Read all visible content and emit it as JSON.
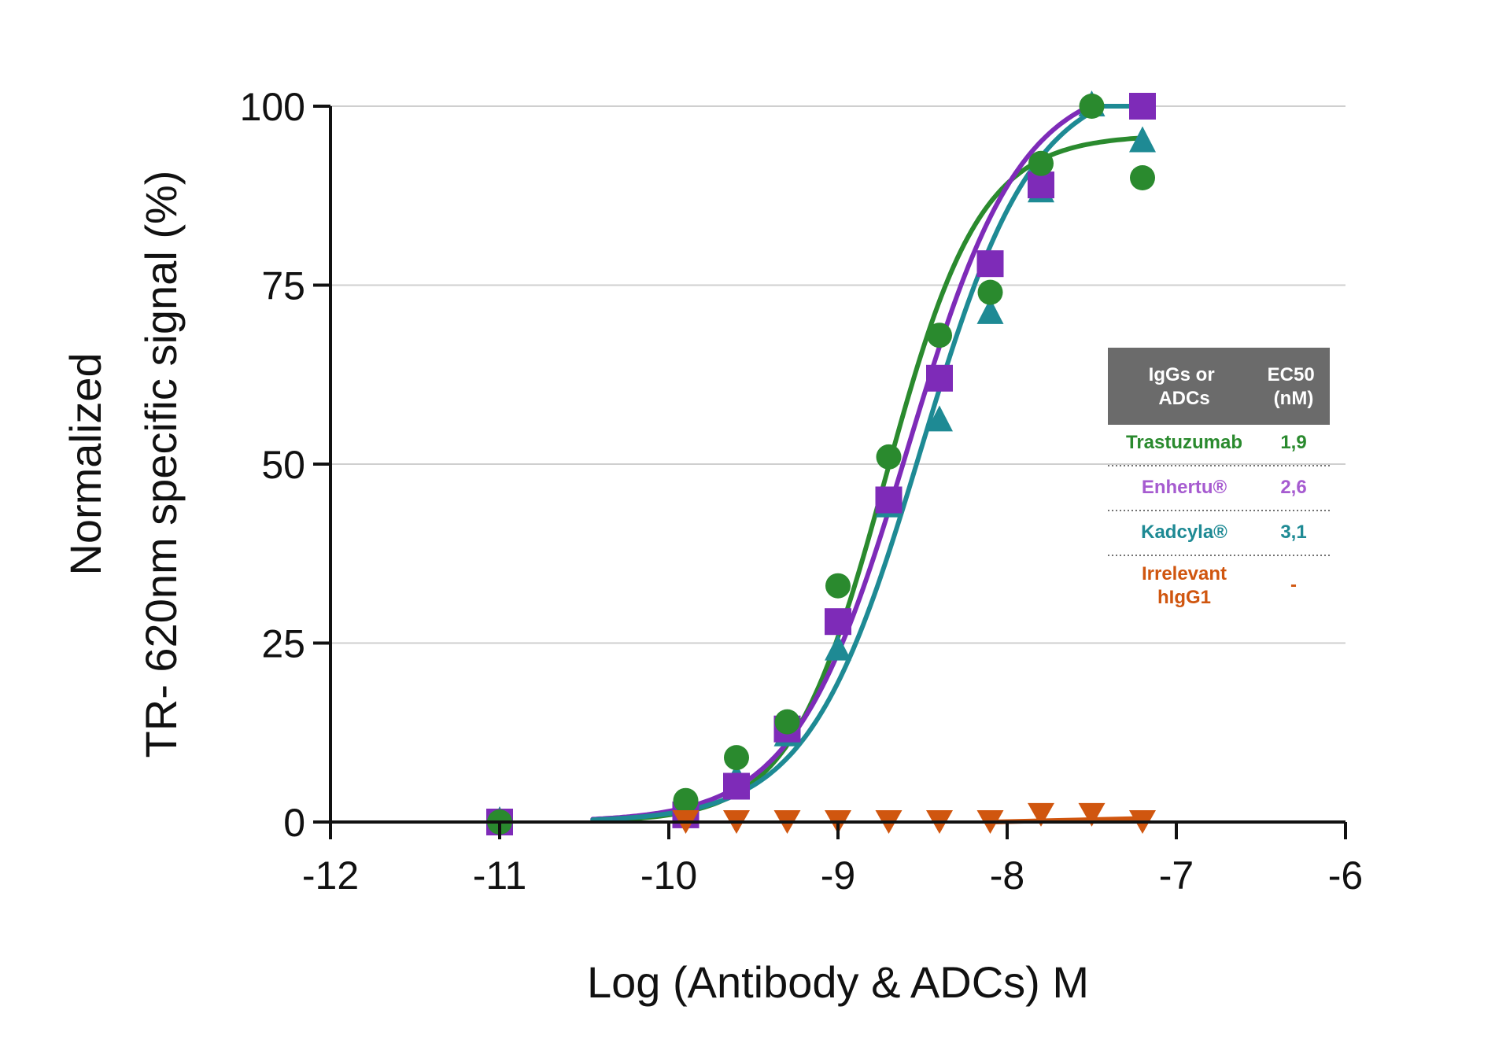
{
  "chart_data": {
    "type": "scatter",
    "xlabel": "Log (Antibody & ADCs) M",
    "ylabel_lines": [
      "Normalized",
      "TR- 620nm specific signal (%)"
    ],
    "xlim": [
      -12,
      -6
    ],
    "ylim": [
      0,
      100
    ],
    "x_ticks": [
      -12,
      -11,
      -10,
      -9,
      -8,
      -7,
      -6
    ],
    "x_tick_labels": [
      "-12",
      "-11",
      "-10",
      "-9",
      "-8",
      "-7",
      "-6"
    ],
    "y_ticks": [
      0,
      25,
      50,
      75,
      100
    ],
    "y_tick_labels": [
      "0",
      "25",
      "50",
      "75",
      "100"
    ],
    "grid": "horizontal",
    "zero_line": "dotted",
    "series": [
      {
        "name": "Trastuzumab",
        "color": "#2a8a2e",
        "marker": "circle",
        "x": [
          -11,
          -9.9,
          -9.6,
          -9.3,
          -9.0,
          -8.7,
          -8.4,
          -8.1,
          -7.8,
          -7.5,
          -7.2
        ],
        "y": [
          0,
          3,
          9,
          14,
          33,
          51,
          68,
          74,
          92,
          100,
          90
        ],
        "fit": {
          "bottom": 0,
          "top": 96,
          "logEC50": -8.72,
          "hill": 1.55
        }
      },
      {
        "name": "Enhertu®",
        "color": "#7e2bb8",
        "marker": "square",
        "x": [
          -11,
          -9.9,
          -9.6,
          -9.3,
          -9.0,
          -8.7,
          -8.4,
          -8.1,
          -7.8,
          -7.2
        ],
        "y": [
          0,
          1,
          5,
          13,
          28,
          45,
          62,
          78,
          89,
          100
        ],
        "fit": {
          "bottom": 0,
          "top": 104,
          "logEC50": -8.59,
          "hill": 1.3
        }
      },
      {
        "name": "Kadcyla®",
        "color": "#1e8a94",
        "marker": "triangle-up",
        "x": [
          -11,
          -9.9,
          -9.6,
          -9.3,
          -9.0,
          -8.7,
          -8.4,
          -8.1,
          -7.8,
          -7.5,
          -7.2
        ],
        "y": [
          0,
          2,
          6,
          12,
          24,
          44,
          56,
          71,
          88,
          100,
          95
        ],
        "fit": {
          "bottom": 0,
          "top": 104,
          "logEC50": -8.51,
          "hill": 1.3
        }
      },
      {
        "name": "Irrelevant hIgG1",
        "color": "#d0560f",
        "marker": "triangle-down",
        "x": [
          -9.9,
          -9.6,
          -9.3,
          -9.0,
          -8.7,
          -8.4,
          -8.1,
          -7.8,
          -7.5,
          -7.2
        ],
        "y": [
          0,
          0,
          0,
          0,
          0,
          0,
          0,
          1,
          1,
          0
        ],
        "fit_segment": {
          "x": [
            -8.1,
            -7.2
          ],
          "y": [
            0,
            0.5
          ]
        }
      }
    ],
    "table": {
      "header": [
        "IgGs or ADCs",
        "EC50 (nM)"
      ],
      "rows": [
        {
          "name": "Trastuzumab",
          "ec50": "1,9",
          "color": "#2a8a2e"
        },
        {
          "name": "Enhertu®",
          "ec50": "2,6",
          "color": "#a65bd0"
        },
        {
          "name": "Kadcyla®",
          "ec50": "3,1",
          "color": "#1e8a94"
        },
        {
          "name": "Irrelevant hIgG1",
          "ec50": "-",
          "color": "#d0560f"
        }
      ]
    }
  }
}
